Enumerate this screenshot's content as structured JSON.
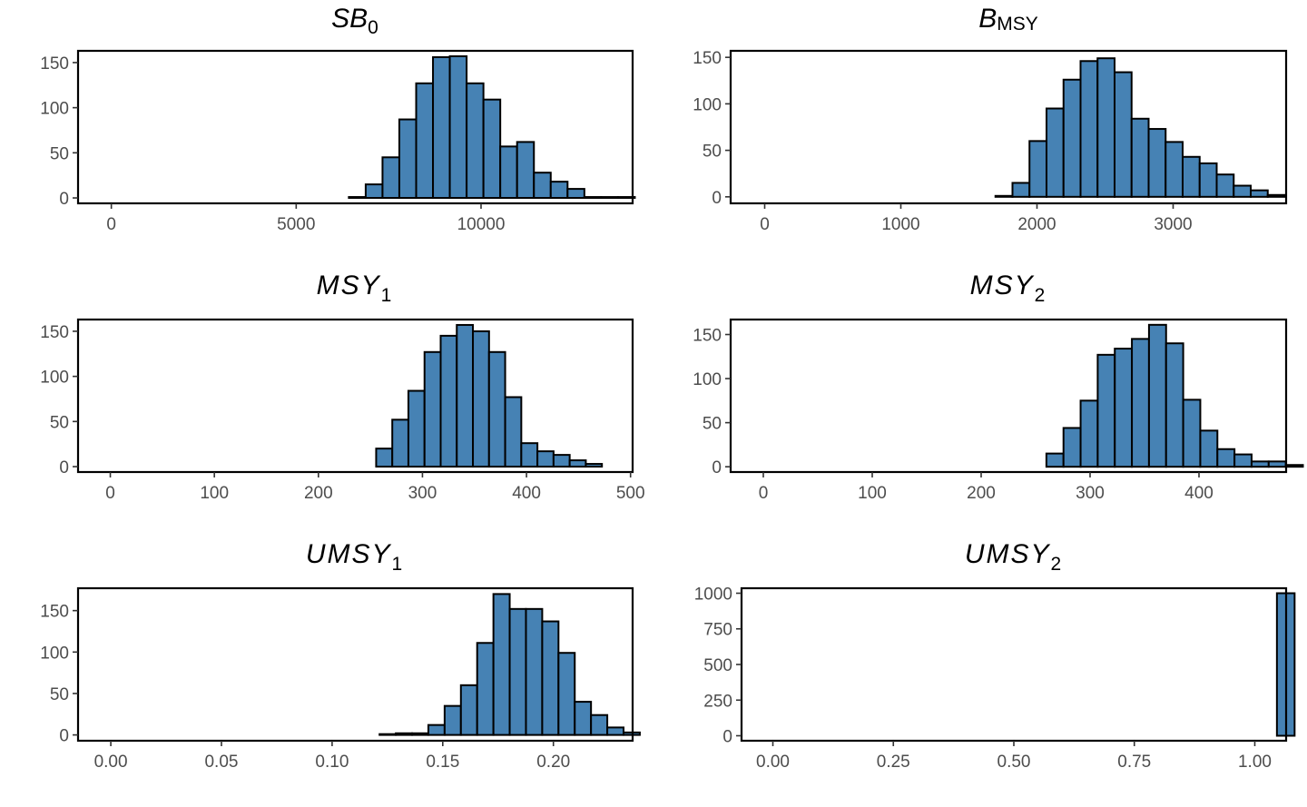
{
  "chart_data": [
    {
      "type": "bar",
      "title": "SB",
      "title_sub": "0",
      "x_ticks": [
        0,
        5000,
        10000
      ],
      "x_tick_labels": [
        "0",
        "5000",
        "10000"
      ],
      "y_ticks": [
        0,
        50,
        100,
        150
      ],
      "y_tick_labels": [
        "0",
        "50",
        "100",
        "150"
      ],
      "xlim": [
        -900,
        14100
      ],
      "ylim": [
        -6,
        163
      ],
      "bin_start": -400,
      "bin_width": 455,
      "values": [
        0,
        0,
        0,
        0,
        0,
        0,
        0,
        0,
        0,
        0,
        0,
        0,
        0,
        0,
        0,
        1,
        15,
        45,
        87,
        127,
        156,
        157,
        127,
        109,
        57,
        62,
        28,
        18,
        10,
        1,
        1,
        1
      ]
    },
    {
      "type": "bar",
      "title": "B",
      "title_sub": "MSY",
      "x_ticks": [
        0,
        1000,
        2000,
        3000
      ],
      "x_tick_labels": [
        "0",
        "1000",
        "2000",
        "3000"
      ],
      "y_ticks": [
        0,
        50,
        100,
        150
      ],
      "y_tick_labels": [
        "0",
        "50",
        "100",
        "150"
      ],
      "xlim": [
        -250,
        3830
      ],
      "ylim": [
        -7,
        157
      ],
      "bin_start": -55,
      "bin_width": 125,
      "values": [
        0,
        0,
        0,
        0,
        0,
        0,
        0,
        0,
        0,
        0,
        0,
        0,
        0,
        0,
        1,
        15,
        60,
        95,
        126,
        146,
        149,
        134,
        84,
        73,
        59,
        43,
        36,
        24,
        12,
        7,
        2
      ]
    },
    {
      "type": "bar",
      "title": "MSY",
      "title_sub": "1",
      "x_ticks": [
        0,
        100,
        200,
        300,
        400,
        500
      ],
      "x_tick_labels": [
        "0",
        "100",
        "200",
        "300",
        "400",
        "500"
      ],
      "y_ticks": [
        0,
        50,
        100,
        150
      ],
      "y_tick_labels": [
        "0",
        "50",
        "100",
        "150"
      ],
      "xlim": [
        -31,
        502
      ],
      "ylim": [
        -6,
        163
      ],
      "bin_start": -8,
      "bin_width": 15.5,
      "values": [
        0,
        0,
        0,
        0,
        0,
        0,
        0,
        0,
        0,
        0,
        0,
        0,
        0,
        0,
        0,
        0,
        0,
        20,
        52,
        84,
        127,
        145,
        157,
        150,
        127,
        77,
        26,
        17,
        13,
        7,
        3,
        0
      ]
    },
    {
      "type": "bar",
      "title": "MSY",
      "title_sub": "2",
      "x_ticks": [
        0,
        100,
        200,
        300,
        400
      ],
      "x_tick_labels": [
        "0",
        "100",
        "200",
        "300",
        "400"
      ],
      "y_ticks": [
        0,
        50,
        100,
        150
      ],
      "y_tick_labels": [
        "0",
        "50",
        "100",
        "150"
      ],
      "xlim": [
        -30,
        480
      ],
      "ylim": [
        -6,
        167
      ],
      "bin_start": -7,
      "bin_width": 15.7,
      "values": [
        0,
        0,
        0,
        0,
        0,
        0,
        0,
        0,
        0,
        0,
        0,
        0,
        0,
        0,
        0,
        0,
        0,
        15,
        44,
        75,
        127,
        134,
        145,
        161,
        140,
        76,
        41,
        20,
        14,
        6,
        6,
        2
      ]
    },
    {
      "type": "bar",
      "title": "UMSY",
      "title_sub": "1",
      "x_ticks": [
        0.0,
        0.05,
        0.1,
        0.15,
        0.2
      ],
      "x_tick_labels": [
        "0.00",
        "0.05",
        "0.10",
        "0.15",
        "0.20"
      ],
      "y_ticks": [
        0,
        50,
        100,
        150
      ],
      "y_tick_labels": [
        "0",
        "50",
        "100",
        "150"
      ],
      "xlim": [
        -0.0148,
        0.2358
      ],
      "ylim": [
        -7,
        177
      ],
      "bin_start": -0.0035,
      "bin_width": 0.00735,
      "values": [
        0,
        0,
        0,
        0,
        0,
        0,
        0,
        0,
        0,
        0,
        0,
        0,
        0,
        0,
        0,
        0,
        0,
        1,
        2,
        2,
        12,
        35,
        60,
        111,
        170,
        152,
        152,
        137,
        99,
        40,
        24,
        9,
        3
      ]
    },
    {
      "type": "bar",
      "title": "UMSY",
      "title_sub": "2",
      "x_ticks": [
        0.0,
        0.25,
        0.5,
        0.75,
        1.0
      ],
      "x_tick_labels": [
        "0.00",
        "0.25",
        "0.50",
        "0.75",
        "1.00"
      ],
      "y_ticks": [
        0,
        250,
        500,
        750,
        1000
      ],
      "y_tick_labels": [
        "0",
        "250",
        "500",
        "750",
        "1000"
      ],
      "xlim": [
        -0.065,
        1.065
      ],
      "ylim": [
        -35,
        1035
      ],
      "bin_start": -0.0184,
      "bin_width": 0.0367,
      "values": [
        0,
        0,
        0,
        0,
        0,
        0,
        0,
        0,
        0,
        0,
        0,
        0,
        0,
        0,
        0,
        0,
        0,
        0,
        0,
        0,
        0,
        0,
        0,
        0,
        0,
        0,
        0,
        0,
        0,
        1000
      ]
    }
  ]
}
